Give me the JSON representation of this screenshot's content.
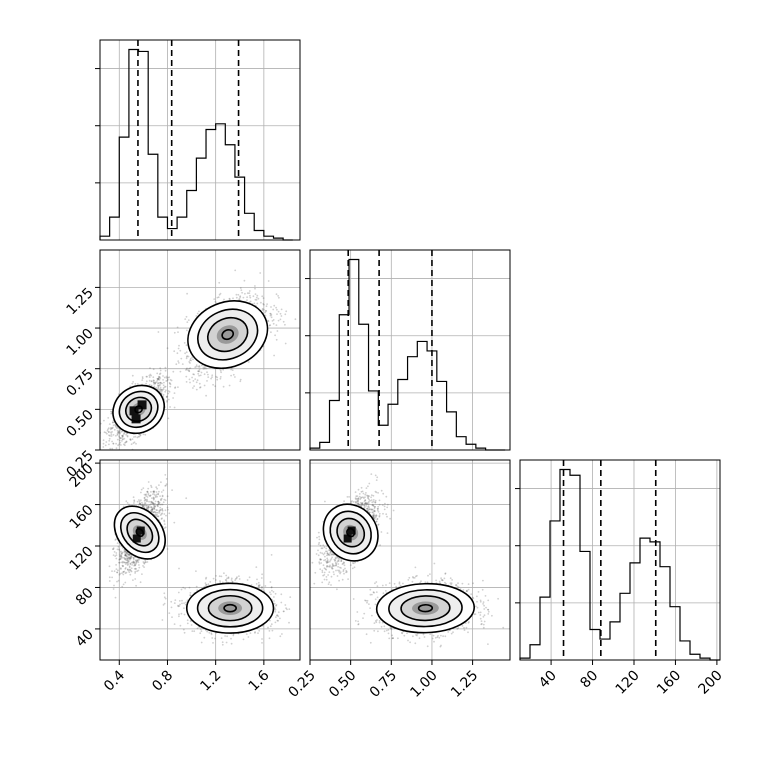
{
  "chart_data": {
    "type": "corner",
    "title": "",
    "grid": true,
    "parameters": [
      {
        "name": "",
        "range": [
          0.24,
          1.9
        ],
        "ticks": [
          "0.4",
          "0.8",
          "1.2",
          "1.6"
        ],
        "tick_values": [
          0.4,
          0.8,
          1.2,
          1.6
        ],
        "quantiles": [
          0.555,
          0.835,
          1.39
        ]
      },
      {
        "name": "",
        "range": [
          0.25,
          1.48
        ],
        "ticks": [
          "0.25",
          "0.50",
          "0.75",
          "1.00",
          "1.25"
        ],
        "tick_values": [
          0.25,
          0.5,
          0.75,
          1.0,
          1.25
        ],
        "quantiles": [
          0.485,
          0.675,
          1.0
        ]
      },
      {
        "name": "",
        "range": [
          10,
          203
        ],
        "ticks": [
          "40",
          "80",
          "120",
          "160",
          "200"
        ],
        "tick_values": [
          40,
          80,
          120,
          160,
          200
        ],
        "quantiles": [
          52,
          88,
          141
        ]
      }
    ],
    "histograms": [
      {
        "param": 0,
        "bin_edges": [
          0.24,
          0.32,
          0.4,
          0.48,
          0.56,
          0.64,
          0.72,
          0.8,
          0.88,
          0.96,
          1.04,
          1.12,
          1.2,
          1.28,
          1.36,
          1.44,
          1.52,
          1.6,
          1.68,
          1.76,
          1.84
        ],
        "counts": [
          0.02,
          0.12,
          0.54,
          1.0,
          0.99,
          0.45,
          0.12,
          0.06,
          0.12,
          0.26,
          0.43,
          0.58,
          0.61,
          0.5,
          0.33,
          0.14,
          0.05,
          0.02,
          0.01,
          0
        ]
      },
      {
        "param": 1,
        "bin_edges": [
          0.25,
          0.31,
          0.37,
          0.43,
          0.49,
          0.55,
          0.61,
          0.67,
          0.73,
          0.79,
          0.85,
          0.91,
          0.97,
          1.03,
          1.09,
          1.15,
          1.21,
          1.27,
          1.33,
          1.39,
          1.45
        ],
        "counts": [
          0.01,
          0.04,
          0.26,
          0.71,
          1.0,
          0.66,
          0.31,
          0.13,
          0.24,
          0.37,
          0.49,
          0.57,
          0.52,
          0.36,
          0.2,
          0.07,
          0.03,
          0.01,
          0,
          0
        ]
      },
      {
        "param": 2,
        "bin_edges": [
          10,
          19.65,
          29.3,
          38.95,
          48.6,
          58.25,
          67.9,
          77.55,
          87.2,
          96.85,
          106.5,
          116.15,
          125.8,
          135.45,
          145.1,
          154.75,
          164.4,
          174.05,
          183.7,
          193.35,
          203
        ],
        "counts": [
          0.01,
          0.08,
          0.33,
          0.73,
          1.0,
          0.97,
          0.57,
          0.16,
          0.11,
          0.2,
          0.35,
          0.51,
          0.64,
          0.62,
          0.49,
          0.28,
          0.1,
          0.03,
          0.01,
          0
        ]
      }
    ],
    "joint": [
      {
        "x_param": 0,
        "y_param": 1,
        "clusters": [
          {
            "cx": 0.56,
            "cy": 0.5,
            "sx": 0.11,
            "sy": 0.09,
            "rho": 0.62,
            "weight": 0.5
          },
          {
            "cx": 1.3,
            "cy": 0.96,
            "sx": 0.17,
            "sy": 0.12,
            "rho": 0.5,
            "weight": 0.5
          }
        ]
      },
      {
        "x_param": 0,
        "y_param": 2,
        "clusters": [
          {
            "cx": 0.57,
            "cy": 133,
            "sx": 0.09,
            "sy": 18,
            "rho": 0.6,
            "weight": 0.5
          },
          {
            "cx": 1.32,
            "cy": 60,
            "sx": 0.18,
            "sy": 12,
            "rho": 0.0,
            "weight": 0.5
          }
        ]
      },
      {
        "x_param": 1,
        "y_param": 2,
        "clusters": [
          {
            "cx": 0.5,
            "cy": 133,
            "sx": 0.08,
            "sy": 18,
            "rho": 0.6,
            "weight": 0.5
          },
          {
            "cx": 0.96,
            "cy": 60,
            "sx": 0.15,
            "sy": 12,
            "rho": 0.05,
            "weight": 0.5
          }
        ]
      }
    ]
  }
}
